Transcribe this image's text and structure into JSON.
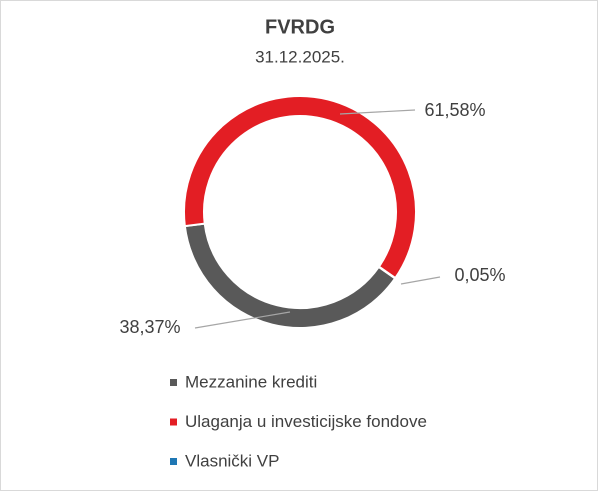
{
  "chart_data": {
    "type": "donut",
    "title": "FVRDG",
    "subtitle": "31.12.2025.",
    "categories": [
      "Mezzanine krediti",
      "Ulaganja u investicijske fondove",
      "Vlasnički VP"
    ],
    "values": [
      38.37,
      61.58,
      0.05
    ],
    "value_labels": [
      "38,37%",
      "61,58%",
      "0,05%"
    ],
    "colors": [
      "#595959",
      "#e31e24",
      "#1f77b4"
    ],
    "legend": "bottom"
  }
}
